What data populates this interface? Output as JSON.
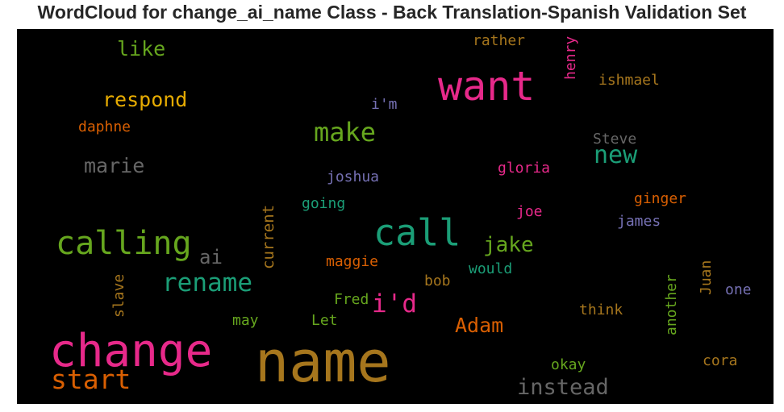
{
  "chart_data": {
    "type": "wordcloud",
    "title": "WordCloud for change_ai_name Class - Back Translation-Spanish Validation Set",
    "background": "#000000",
    "palette": [
      "#e7298a",
      "#a6761d",
      "#66a61e",
      "#1b9e77",
      "#d95f02",
      "#e6ab02",
      "#7570b3",
      "#666666"
    ],
    "words": [
      {
        "text": "name",
        "size": 70,
        "color": "#a6761d"
      },
      {
        "text": "change",
        "size": 56,
        "color": "#e7298a"
      },
      {
        "text": "want",
        "size": 50,
        "color": "#e7298a"
      },
      {
        "text": "call",
        "size": 45,
        "color": "#1b9e77"
      },
      {
        "text": "calling",
        "size": 40,
        "color": "#66a61e"
      },
      {
        "text": "start",
        "size": 33,
        "color": "#d95f02"
      },
      {
        "text": "make",
        "size": 32,
        "color": "#66a61e"
      },
      {
        "text": "rename",
        "size": 31,
        "color": "#1b9e77"
      },
      {
        "text": "i'd",
        "size": 31,
        "color": "#e7298a"
      },
      {
        "text": "new",
        "size": 30,
        "color": "#1b9e77"
      },
      {
        "text": "instead",
        "size": 27,
        "color": "#666666"
      },
      {
        "text": "jake",
        "size": 26,
        "color": "#66a61e"
      },
      {
        "text": "respond",
        "size": 25,
        "color": "#e6ab02"
      },
      {
        "text": "marie",
        "size": 25,
        "color": "#666666"
      },
      {
        "text": "like",
        "size": 25,
        "color": "#66a61e"
      },
      {
        "text": "Adam",
        "size": 25,
        "color": "#d95f02"
      },
      {
        "text": "ai",
        "size": 24,
        "color": "#666666"
      },
      {
        "text": "current",
        "size": 19,
        "color": "#a6761d",
        "rotate": true
      },
      {
        "text": "henry",
        "size": 18,
        "color": "#e7298a",
        "rotate": true
      },
      {
        "text": "Steve",
        "size": 18,
        "color": "#666666"
      },
      {
        "text": "daphne",
        "size": 18,
        "color": "#d95f02"
      },
      {
        "text": "gloria",
        "size": 18,
        "color": "#e7298a"
      },
      {
        "text": "joshua",
        "size": 18,
        "color": "#7570b3"
      },
      {
        "text": "going",
        "size": 18,
        "color": "#1b9e77"
      },
      {
        "text": "ginger",
        "size": 18,
        "color": "#d95f02"
      },
      {
        "text": "maggie",
        "size": 18,
        "color": "#d95f02"
      },
      {
        "text": "would",
        "size": 18,
        "color": "#1b9e77"
      },
      {
        "text": "ishmael",
        "size": 18,
        "color": "#a6761d"
      },
      {
        "text": "rather",
        "size": 18,
        "color": "#a6761d"
      },
      {
        "text": "i'm",
        "size": 18,
        "color": "#7570b3"
      },
      {
        "text": "joe",
        "size": 18,
        "color": "#e7298a"
      },
      {
        "text": "james",
        "size": 18,
        "color": "#7570b3"
      },
      {
        "text": "slave",
        "size": 18,
        "color": "#a6761d",
        "rotate": true
      },
      {
        "text": "bob",
        "size": 18,
        "color": "#a6761d"
      },
      {
        "text": "Juan",
        "size": 18,
        "color": "#a6761d",
        "rotate": true
      },
      {
        "text": "another",
        "size": 18,
        "color": "#66a61e",
        "rotate": true
      },
      {
        "text": "one",
        "size": 18,
        "color": "#7570b3"
      },
      {
        "text": "think",
        "size": 18,
        "color": "#a6761d"
      },
      {
        "text": "Fred",
        "size": 18,
        "color": "#66a61e"
      },
      {
        "text": "may",
        "size": 18,
        "color": "#66a61e"
      },
      {
        "text": "Let",
        "size": 18,
        "color": "#66a61e"
      },
      {
        "text": "okay",
        "size": 18,
        "color": "#66a61e"
      },
      {
        "text": "cora",
        "size": 18,
        "color": "#a6761d"
      }
    ]
  }
}
